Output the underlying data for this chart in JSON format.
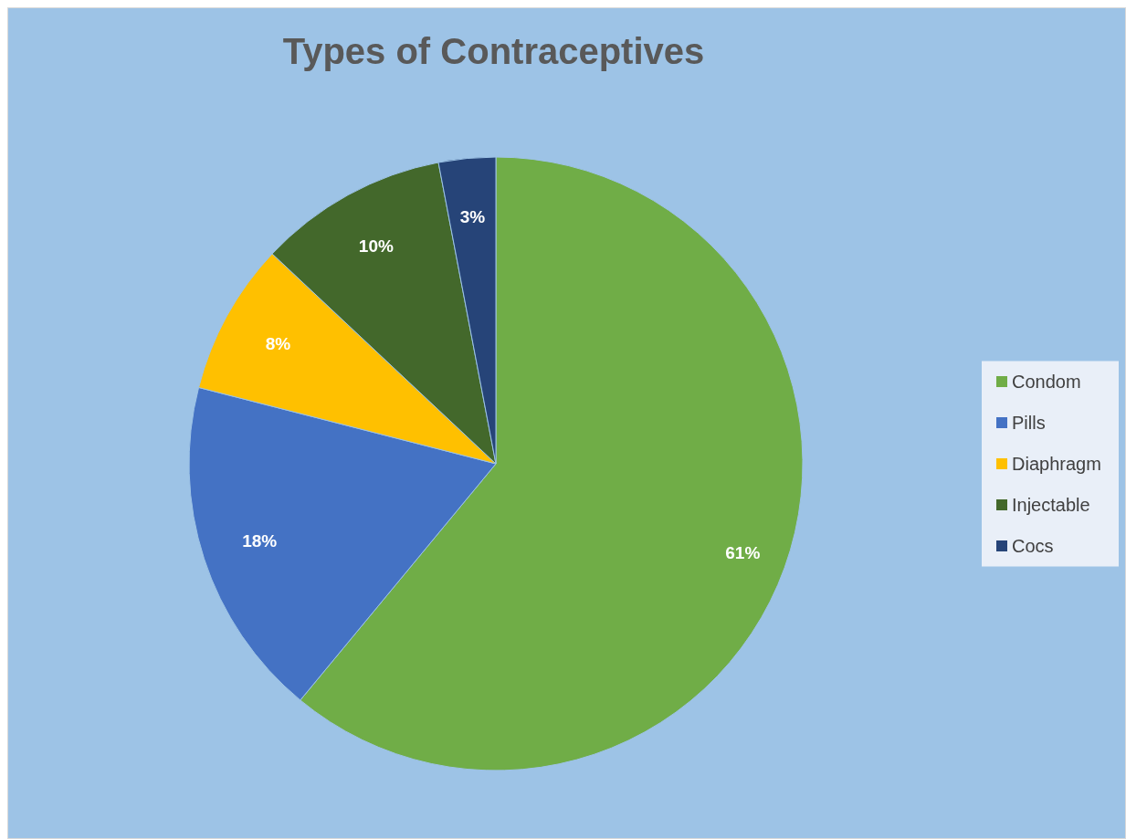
{
  "chart_data": {
    "type": "pie",
    "title": "Types of Contraceptives",
    "categories": [
      "Condom",
      "Pills",
      "Diaphragm",
      "Injectable",
      "Cocs"
    ],
    "values": [
      61,
      18,
      8,
      10,
      3
    ],
    "colors": [
      "#70ad47",
      "#4472c4",
      "#ffc000",
      "#43682b",
      "#264478"
    ],
    "value_labels": [
      "61%",
      "18%",
      "8%",
      "10%",
      "3%"
    ],
    "legend": "right"
  }
}
